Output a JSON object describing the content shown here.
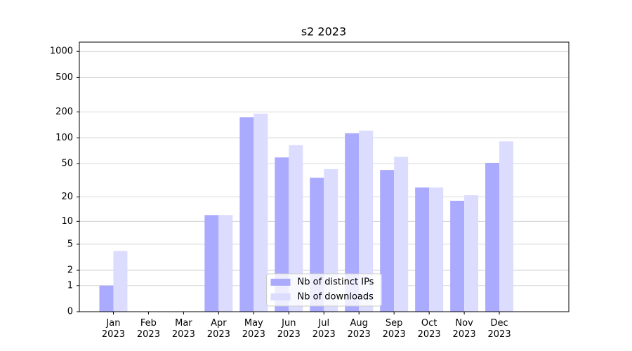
{
  "chart_data": {
    "type": "bar",
    "title": "s2 2023",
    "categories": [
      "Jan\n2023",
      "Feb\n2023",
      "Mar\n2023",
      "Apr\n2023",
      "May\n2023",
      "Jun\n2023",
      "Jul\n2023",
      "Aug\n2023",
      "Sep\n2023",
      "Oct\n2023",
      "Nov\n2023",
      "Dec\n2023"
    ],
    "series": [
      {
        "name": "Nb of distinct IPs",
        "color": "#aaaaff",
        "values": [
          1,
          0,
          0,
          12,
          173,
          59,
          34,
          113,
          42,
          26,
          18,
          51
        ]
      },
      {
        "name": "Nb of downloads",
        "color": "#dcdcff",
        "values": [
          4,
          0,
          0,
          12,
          191,
          82,
          43,
          121,
          60,
          26,
          21,
          91
        ]
      }
    ],
    "yscale": "log1p",
    "ylim": [
      0,
      1280
    ],
    "yticks": [
      0,
      1,
      2,
      5,
      10,
      20,
      50,
      100,
      200,
      500,
      1000
    ],
    "grid": true,
    "legend": "lower center"
  }
}
